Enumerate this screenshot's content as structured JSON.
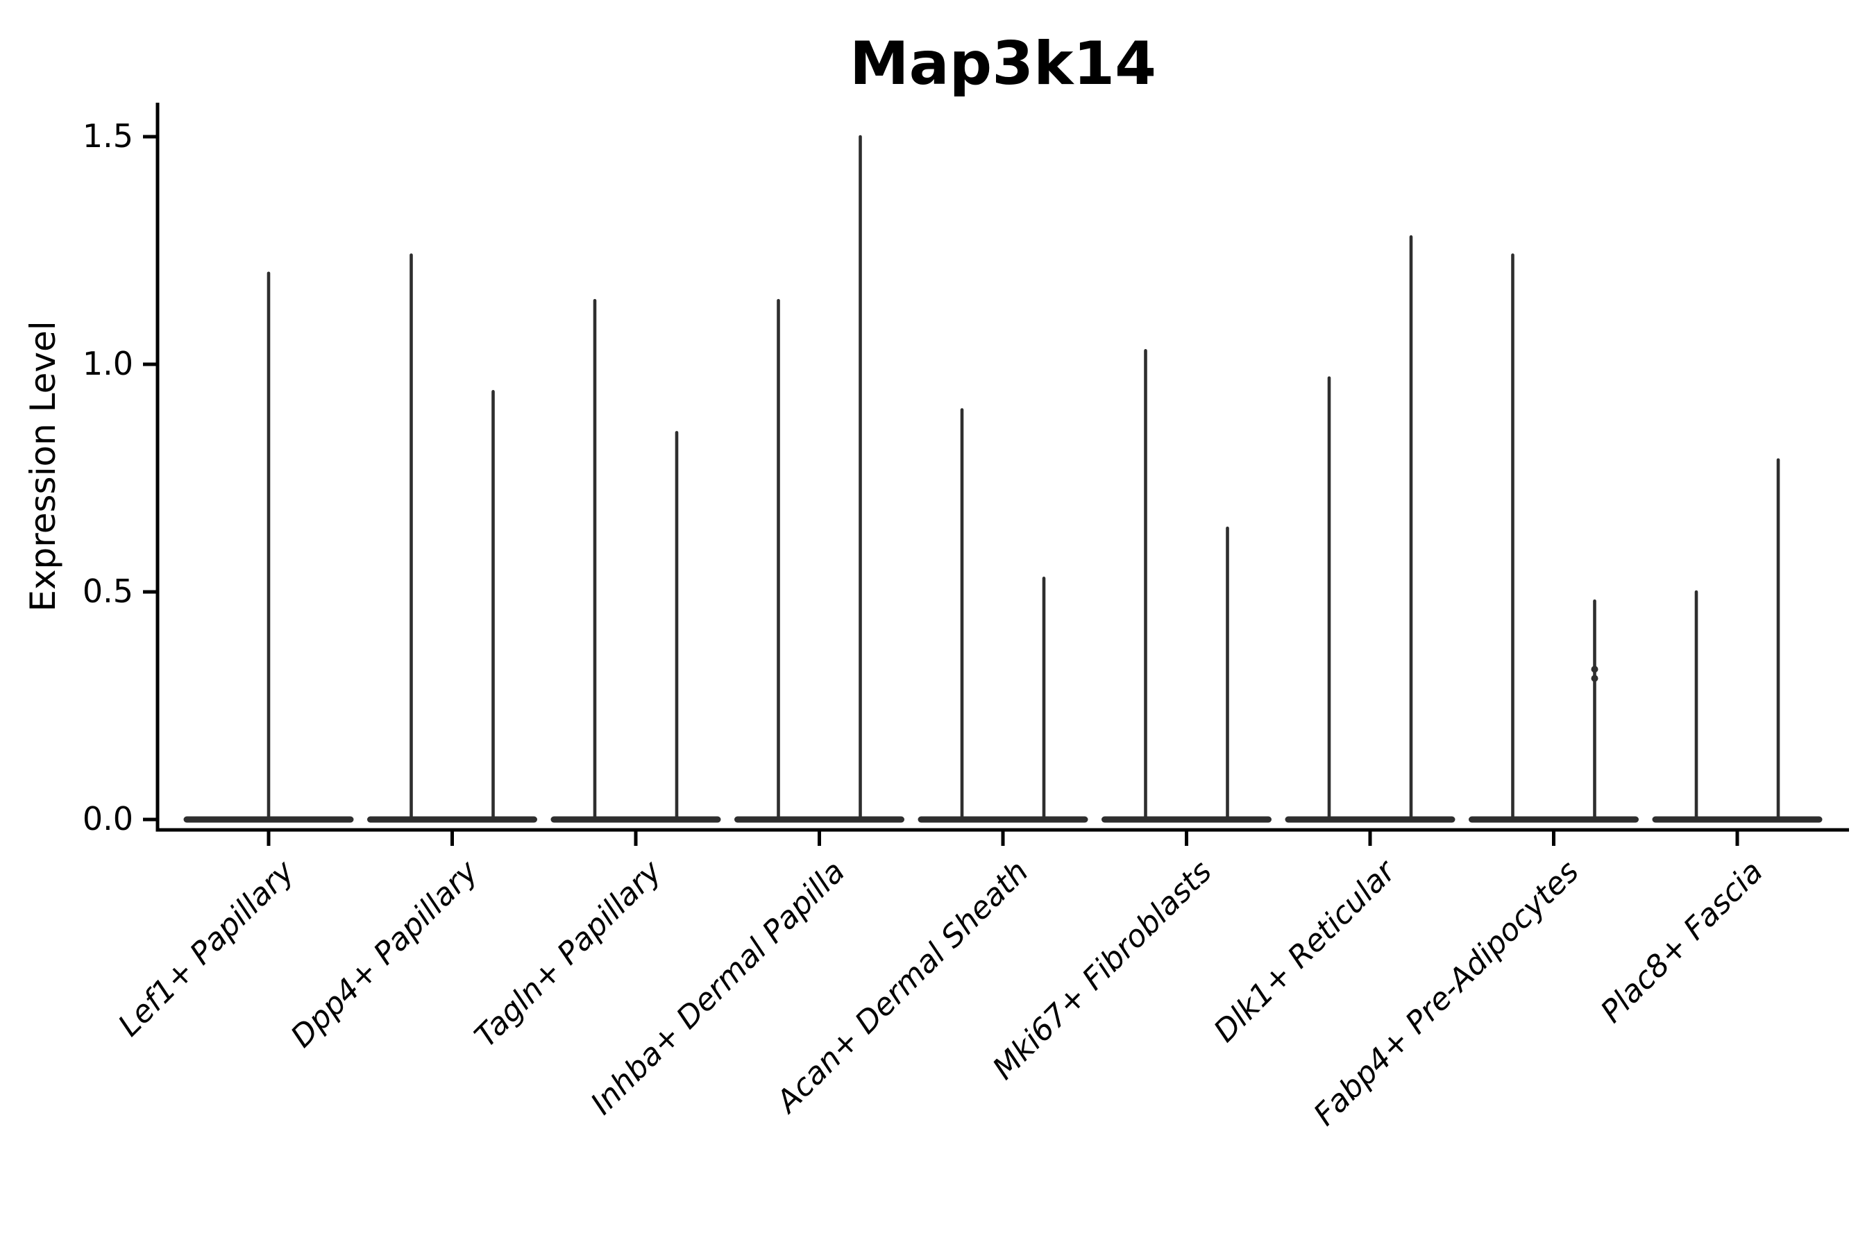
{
  "title": "Map3k14",
  "chart_data": {
    "type": "violin",
    "title": "Map3k14",
    "ylabel": "Expression Level",
    "xlabel": "",
    "ylim": [
      0,
      1.55
    ],
    "yticks": [
      "0.0",
      "0.5",
      "1.0",
      "1.5"
    ],
    "ytick_values": [
      0.0,
      0.5,
      1.0,
      1.5
    ],
    "grid": false,
    "legend_position": "none",
    "style_note": "each violin collapses to a thin vertical spike above a flat baseline at 0",
    "categories": [
      {
        "label": "Lef1+ Papillary",
        "violin_max": [
          1.2
        ]
      },
      {
        "label": "Dpp4+ Papillary",
        "violin_max": [
          1.24,
          0.94
        ]
      },
      {
        "label": "Tagln+ Papillary",
        "violin_max": [
          1.14,
          0.85
        ]
      },
      {
        "label": "Inhba+ Dermal Papilla",
        "violin_max": [
          1.14,
          1.5
        ]
      },
      {
        "label": "Acan+ Dermal Sheath",
        "violin_max": [
          0.9,
          0.53
        ]
      },
      {
        "label": "Mki67+ Fibroblasts",
        "violin_max": [
          1.03,
          0.64
        ]
      },
      {
        "label": "Dlk1+ Reticular",
        "violin_max": [
          0.97,
          1.28
        ]
      },
      {
        "label": "Fabp4+ Pre-Adipocytes",
        "violin_max": [
          1.24,
          0.48
        ],
        "dots": {
          "violin_index": 1,
          "values": [
            0.33,
            0.31
          ]
        }
      },
      {
        "label": "Plac8+ Fascia",
        "violin_max": [
          0.5,
          0.79
        ]
      }
    ],
    "colors": {
      "violin_line": "#2e2e2e",
      "spine": "#000000",
      "text": "#000000",
      "background": "#ffffff"
    }
  }
}
